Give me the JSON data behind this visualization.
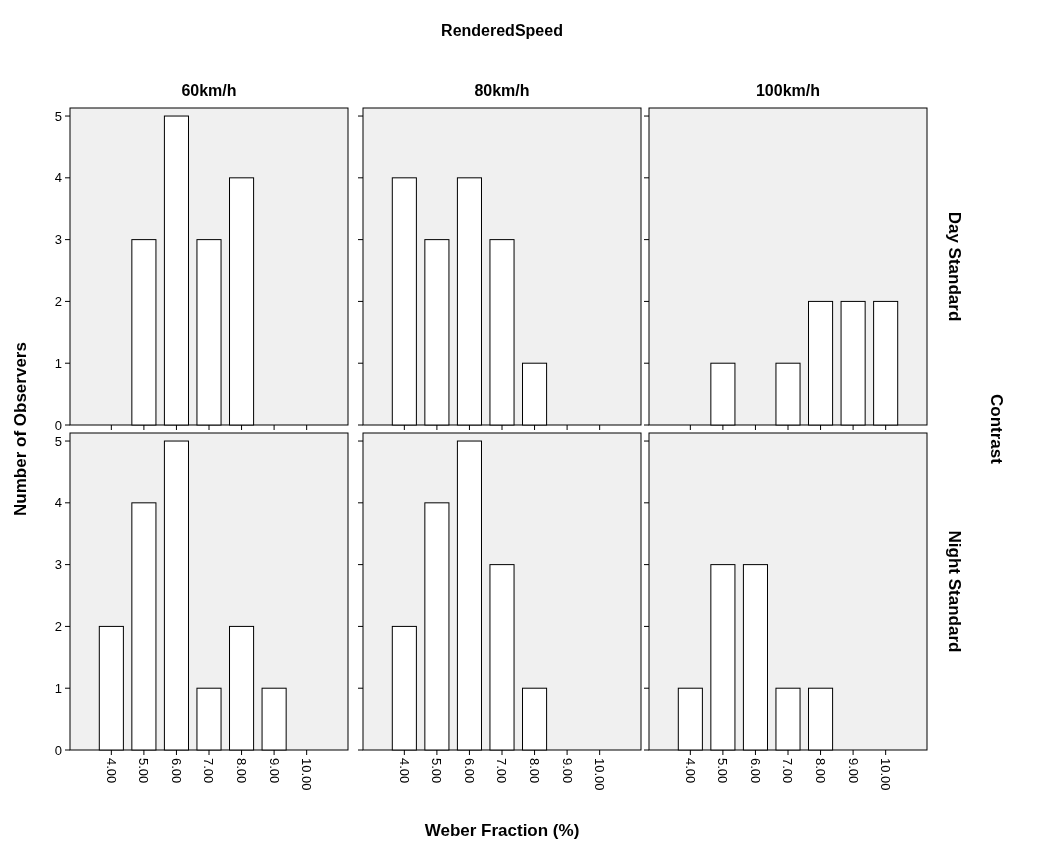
{
  "chart_data": [
    {
      "type": "bar",
      "title": "60km/h",
      "categories": [
        "4.00",
        "5.00",
        "6.00",
        "7.00",
        "8.00",
        "9.00",
        "10.00"
      ],
      "values": [
        0,
        3,
        5,
        3,
        4,
        0,
        0
      ],
      "color": "#ffffff",
      "ylim": [
        0,
        5.13
      ],
      "yticks": [
        0,
        1,
        2,
        3,
        4,
        5
      ],
      "tick_labels": "y",
      "ylabel": "Number of Observers"
    },
    {
      "type": "bar",
      "title": "80km/h",
      "annotations": [
        "RenderedSpeed"
      ],
      "categories": [
        "4.00",
        "5.00",
        "6.00",
        "7.00",
        "8.00",
        "9.00",
        "10.00"
      ],
      "values": [
        4,
        3,
        4,
        3,
        1,
        0,
        0
      ],
      "color": "#ffffff",
      "ylim": [
        0,
        5.13
      ],
      "yticks": [
        0,
        1,
        2,
        3,
        4,
        5
      ],
      "tick_labels": false
    },
    {
      "type": "bar",
      "title": "100km/h",
      "annotations": [
        "Day Standard",
        "Contrast"
      ],
      "categories": [
        "4.00",
        "5.00",
        "6.00",
        "7.00",
        "8.00",
        "9.00",
        "10.00"
      ],
      "values": [
        0,
        1,
        0,
        1,
        2,
        2,
        2
      ],
      "color": "#ffffff",
      "ylim": [
        0,
        5.13
      ],
      "yticks": [
        0,
        1,
        2,
        3,
        4,
        5
      ],
      "tick_labels": false
    },
    {
      "type": "bar",
      "categories": [
        "4.00",
        "5.00",
        "6.00",
        "7.00",
        "8.00",
        "9.00",
        "10.00"
      ],
      "values": [
        2,
        4,
        5,
        1,
        2,
        1,
        0
      ],
      "color": "#ffffff",
      "ylim": [
        0,
        5.13
      ],
      "yticks": [
        0,
        1,
        2,
        3,
        4,
        5
      ]
    },
    {
      "type": "bar",
      "xlabel": "Weber Fraction (%)",
      "categories": [
        "4.00",
        "5.00",
        "6.00",
        "7.00",
        "8.00",
        "9.00",
        "10.00"
      ],
      "values": [
        2,
        4,
        5,
        3,
        1,
        0,
        0
      ],
      "color": "#ffffff",
      "ylim": [
        0,
        5.13
      ],
      "yticks": [
        0,
        1,
        2,
        3,
        4,
        5
      ],
      "tick_labels": "x"
    },
    {
      "type": "bar",
      "annotations": [
        "Night Standard"
      ],
      "categories": [
        "4.00",
        "5.00",
        "6.00",
        "7.00",
        "8.00",
        "9.00",
        "10.00"
      ],
      "values": [
        1,
        3,
        3,
        1,
        1,
        0,
        0
      ],
      "color": "#ffffff",
      "ylim": [
        0,
        5.13
      ],
      "yticks": [
        0,
        1,
        2,
        3,
        4,
        5
      ],
      "tick_labels": "x"
    }
  ]
}
